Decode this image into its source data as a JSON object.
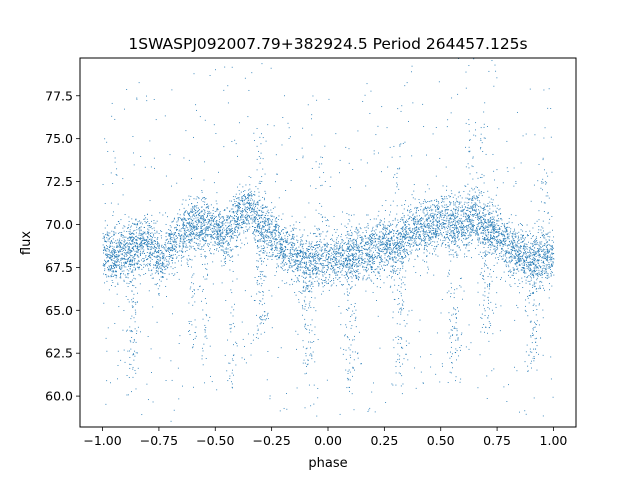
{
  "chart_data": {
    "type": "scatter",
    "title": "1SWASPJ092007.79+382924.5 Period 264457.125s",
    "xlabel": "phase",
    "ylabel": "flux",
    "xlim": [
      -1.1,
      1.1
    ],
    "ylim": [
      58.2,
      79.7
    ],
    "xticks": [
      -1.0,
      -0.75,
      -0.5,
      -0.25,
      0.0,
      0.25,
      0.5,
      0.75,
      1.0
    ],
    "xtick_labels": [
      "−1.00",
      "−0.75",
      "−0.50",
      "−0.25",
      "0.00",
      "0.25",
      "0.50",
      "0.75",
      "1.00"
    ],
    "yticks": [
      60.0,
      62.5,
      65.0,
      67.5,
      70.0,
      72.5,
      75.0,
      77.5
    ],
    "ytick_labels": [
      "60.0",
      "62.5",
      "65.0",
      "67.5",
      "70.0",
      "72.5",
      "75.0",
      "77.5"
    ],
    "grid": false,
    "legend": "none",
    "marker_color": "#1f77b4",
    "series": [
      {
        "x": [
          -1.0,
          -0.95,
          -0.9,
          -0.85,
          -0.8,
          -0.75,
          -0.7,
          -0.65,
          -0.6,
          -0.55,
          -0.5,
          -0.45,
          -0.4,
          -0.35,
          -0.3,
          -0.25,
          -0.2,
          -0.15,
          -0.1,
          -0.05,
          0.0,
          0.05,
          0.1,
          0.15,
          0.2,
          0.25,
          0.3,
          0.35,
          0.4,
          0.45,
          0.5,
          0.55,
          0.6,
          0.65,
          0.7,
          0.75,
          0.8,
          0.85,
          0.9,
          0.95,
          1.0
        ],
        "y": [
          68.2,
          68.0,
          68.5,
          68.8,
          69.0,
          68.0,
          68.5,
          69.5,
          70.0,
          70.2,
          69.8,
          69.5,
          70.5,
          71.0,
          70.0,
          69.5,
          68.5,
          68.3,
          67.8,
          68.0,
          67.9,
          68.0,
          68.3,
          68.5,
          68.4,
          69.0,
          68.6,
          69.5,
          69.8,
          70.0,
          70.2,
          70.3,
          70.0,
          70.5,
          69.8,
          69.5,
          68.6,
          68.3,
          68.0,
          68.1,
          68.2
        ]
      },
      {
        "name": "",
        "x": [
          -0.88,
          -0.86,
          -0.6,
          -0.55,
          -0.43,
          -0.31,
          -0.29,
          -0.1,
          -0.08,
          0.09,
          0.11,
          0.31,
          0.33,
          0.55,
          0.57,
          0.69,
          0.71,
          0.9,
          0.92
        ],
        "y": [
          60.0,
          61.0,
          62.5,
          61.8,
          60.5,
          63.0,
          64.0,
          61.0,
          61.5,
          60.0,
          61.5,
          60.5,
          62.0,
          60.8,
          61.0,
          63.0,
          64.0,
          61.0,
          62.0
        ]
      }
    ],
    "envelope": {
      "phase": [
        -1.0,
        -0.95,
        -0.9,
        -0.85,
        -0.8,
        -0.75,
        -0.7,
        -0.65,
        -0.6,
        -0.55,
        -0.5,
        -0.45,
        -0.4,
        -0.35,
        -0.3,
        -0.25,
        -0.2,
        -0.15,
        -0.1,
        -0.05,
        0.0,
        0.05,
        0.1,
        0.15,
        0.2,
        0.25,
        0.3,
        0.35,
        0.4,
        0.45,
        0.5,
        0.55,
        0.6,
        0.65,
        0.7,
        0.75,
        0.8,
        0.85,
        0.9,
        0.95,
        1.0
      ],
      "flux_mean": [
        68.2,
        68.0,
        68.5,
        68.8,
        69.0,
        68.0,
        68.5,
        69.5,
        70.0,
        70.2,
        69.8,
        69.5,
        70.5,
        71.0,
        70.0,
        69.5,
        68.5,
        68.3,
        67.8,
        68.0,
        67.9,
        68.0,
        68.3,
        68.5,
        68.4,
        69.0,
        68.6,
        69.5,
        69.8,
        70.0,
        70.2,
        70.3,
        70.0,
        70.5,
        69.8,
        69.5,
        68.6,
        68.3,
        68.0,
        68.1,
        68.2
      ],
      "flux_spread": 1.1
    }
  }
}
